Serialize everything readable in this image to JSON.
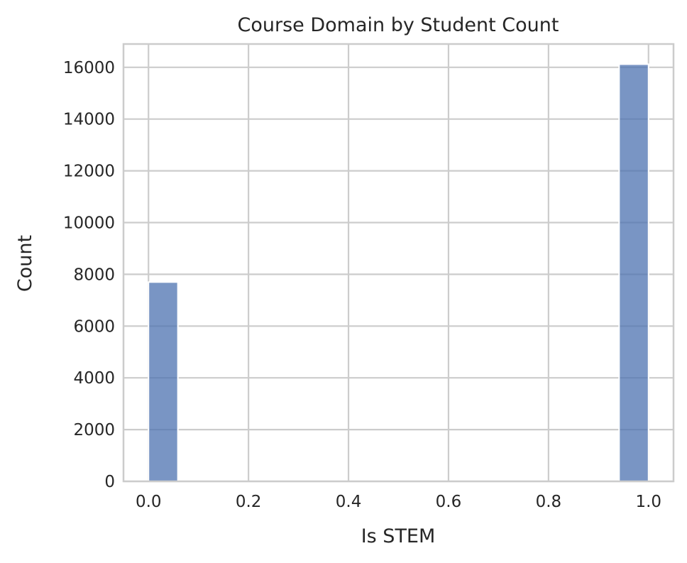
{
  "chart_data": {
    "type": "bar",
    "subtype": "histogram",
    "title": "Course Domain by Student Count",
    "xlabel": "Is STEM",
    "ylabel": "Count",
    "xlim": [
      -0.05,
      1.05
    ],
    "ylim": [
      0,
      16900
    ],
    "xticks": [
      0.0,
      0.2,
      0.4,
      0.6,
      0.8,
      1.0
    ],
    "xtick_labels": [
      "0.0",
      "0.2",
      "0.4",
      "0.6",
      "0.8",
      "1.0"
    ],
    "yticks": [
      0,
      2000,
      4000,
      6000,
      8000,
      10000,
      12000,
      14000,
      16000
    ],
    "ytick_labels": [
      "0",
      "2000",
      "4000",
      "6000",
      "8000",
      "10000",
      "12000",
      "14000",
      "16000"
    ],
    "bars": [
      {
        "x_start": 0.0,
        "x_end": 0.0588,
        "value": 7700
      },
      {
        "x_start": 0.9412,
        "x_end": 1.0,
        "value": 16120
      }
    ],
    "grid": true,
    "bar_color": "#4c72b0",
    "bar_opacity": 0.75,
    "grid_color": "#cccccc",
    "frame_color": "#cccccc"
  }
}
